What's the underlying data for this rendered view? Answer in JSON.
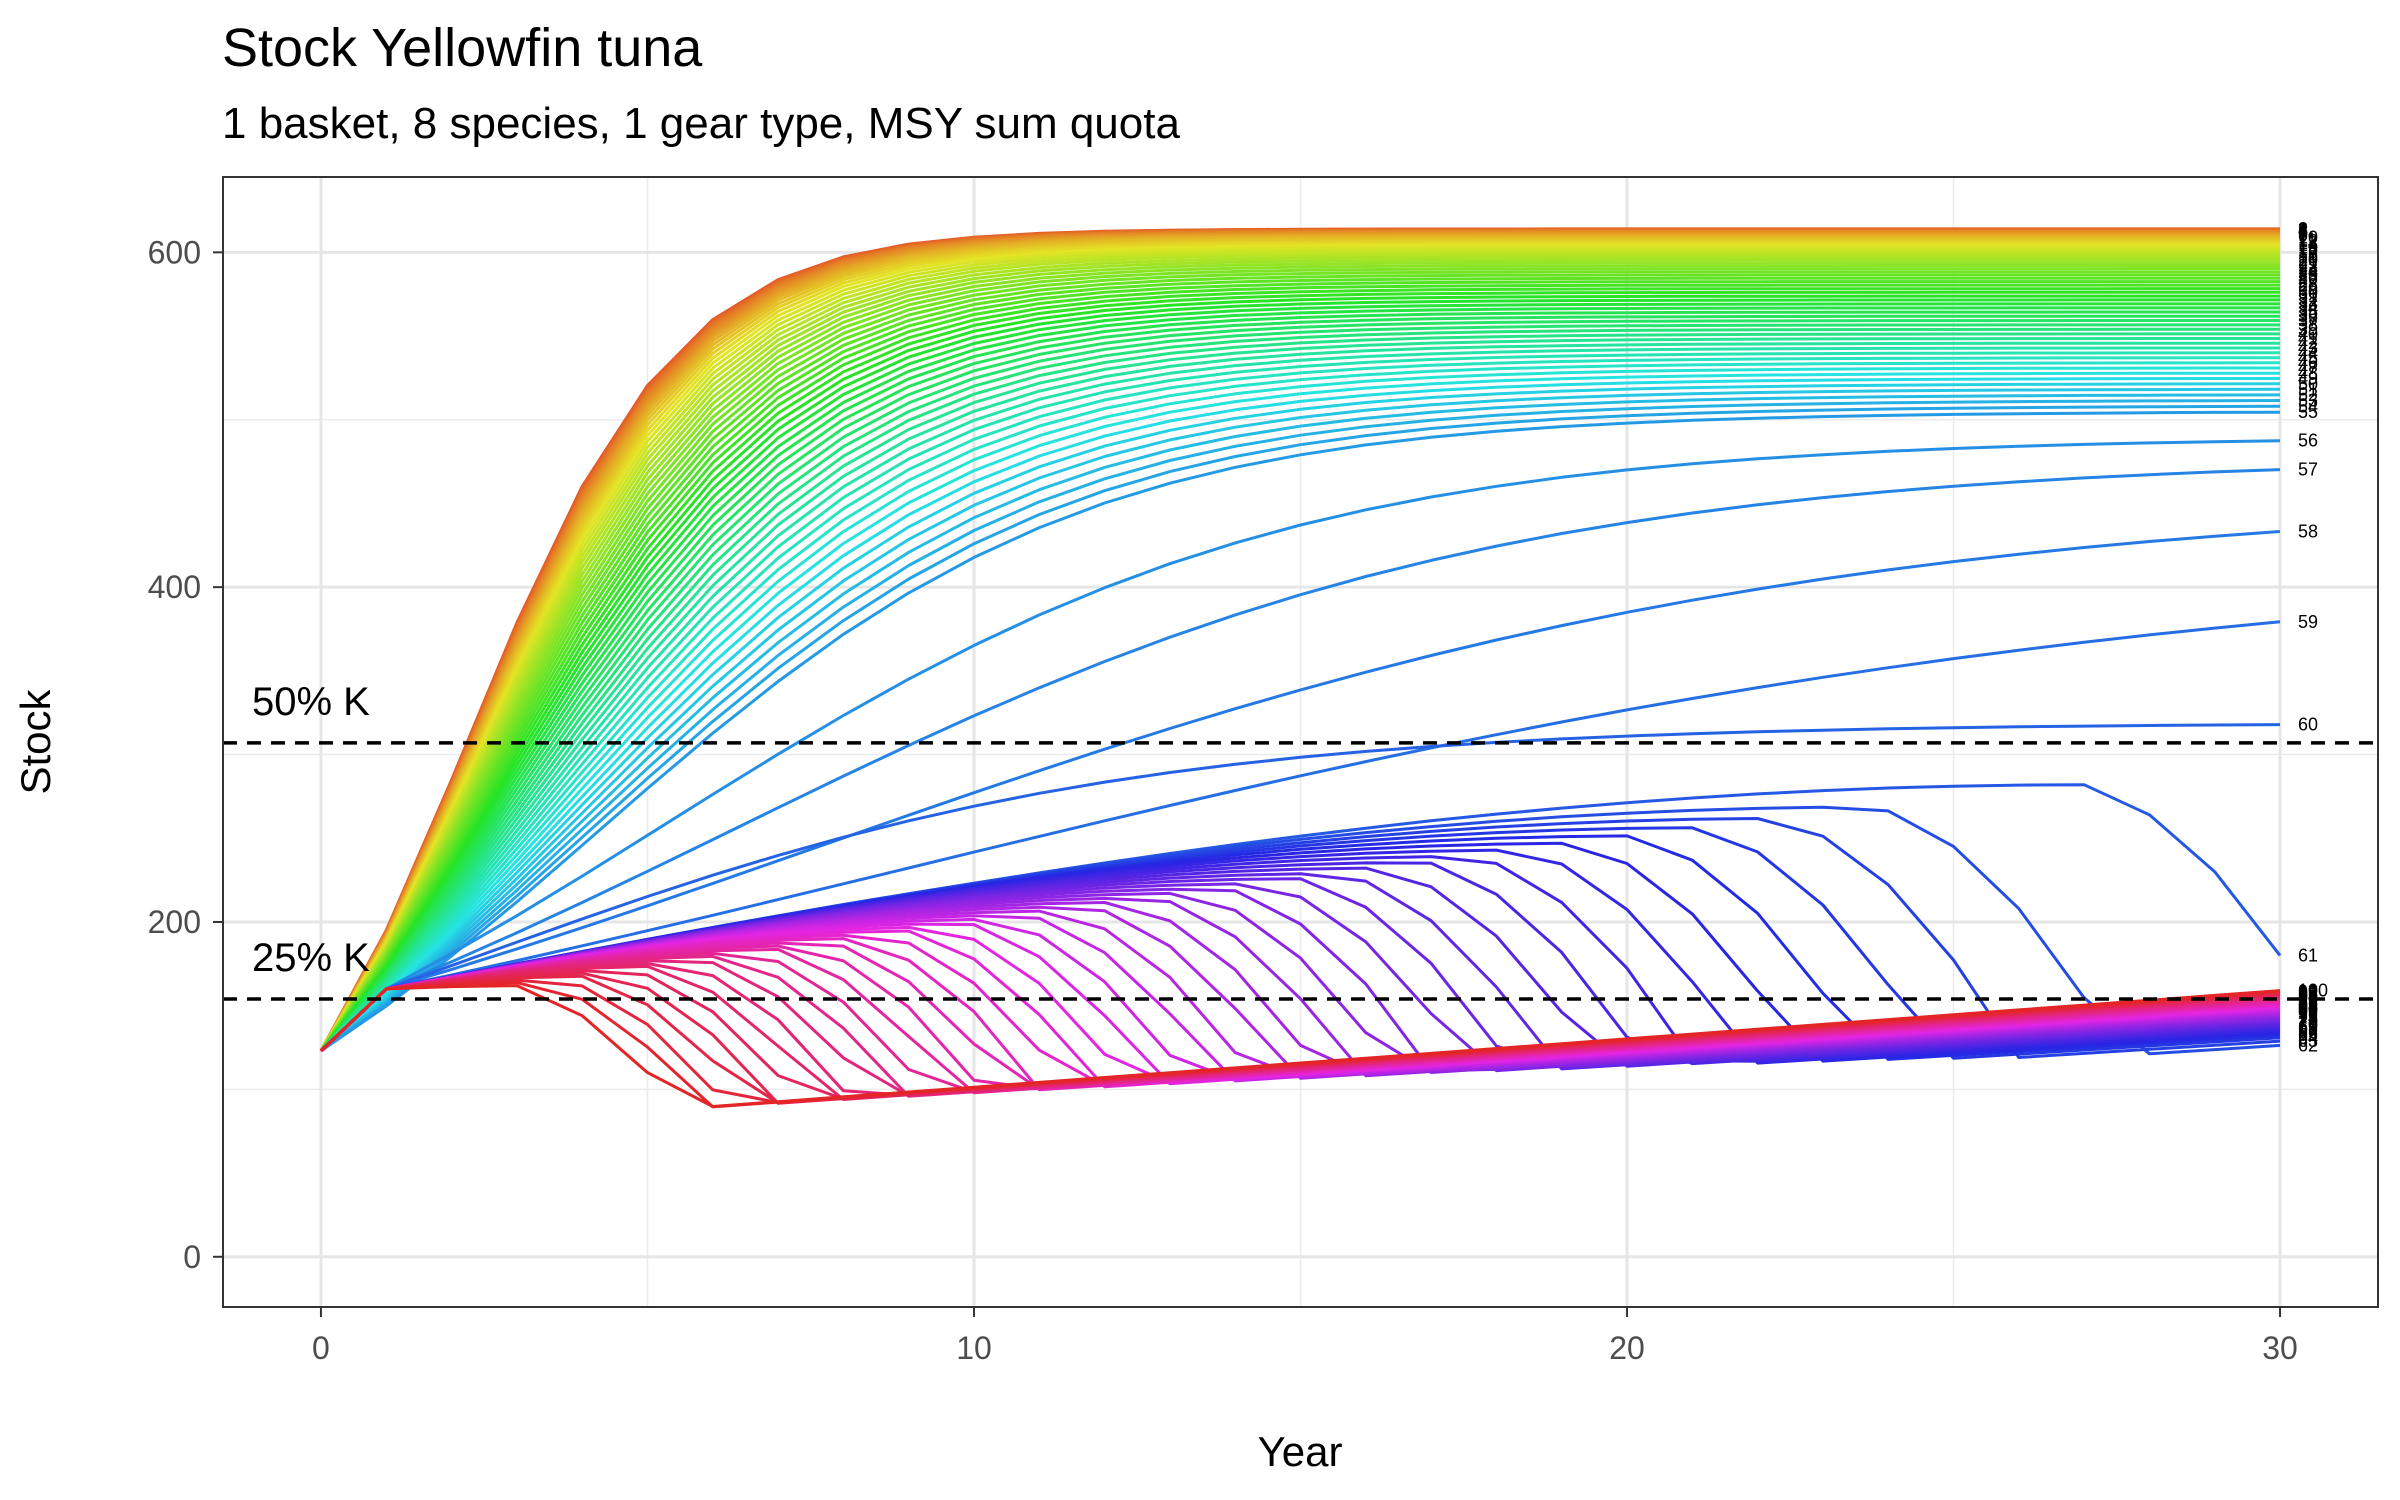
{
  "chart_data": {
    "type": "line",
    "title": "Stock Yellowfin tuna",
    "subtitle": "1 basket, 8 species, 1 gear type, MSY sum quota",
    "xlabel": "Year",
    "ylabel": "Stock",
    "xlim": [
      -1.5,
      31.5
    ],
    "ylim": [
      -30,
      645
    ],
    "x_ticks": [
      0,
      10,
      20,
      30
    ],
    "y_ticks": [
      0,
      200,
      400,
      600
    ],
    "grid": true,
    "legend": "none",
    "x": [
      0,
      1,
      2,
      3,
      4,
      5,
      6,
      7,
      8,
      9,
      10,
      11,
      12,
      13,
      14,
      15,
      16,
      17,
      18,
      19,
      20,
      21,
      22,
      23,
      24,
      25,
      26,
      27,
      28,
      29,
      30
    ],
    "reference_lines": [
      {
        "label": "50% K",
        "y": 307
      },
      {
        "label": "25% K",
        "y": 154
      }
    ],
    "series_summary": {
      "count": 100,
      "start_value": 123,
      "end_labels_shown": [
        "56",
        "57",
        "58",
        "59",
        "60",
        "61",
        "62",
        "63",
        "100"
      ],
      "end_values_sample": [
        {
          "label": "1",
          "value": 614
        },
        {
          "label": "56",
          "value": 483
        },
        {
          "label": "57",
          "value": 466
        },
        {
          "label": "58",
          "value": 437
        },
        {
          "label": "59",
          "value": 396
        },
        {
          "label": "60",
          "value": 319
        },
        {
          "label": "61",
          "value": 120
        },
        {
          "label": "100",
          "value": 159
        }
      ]
    }
  }
}
